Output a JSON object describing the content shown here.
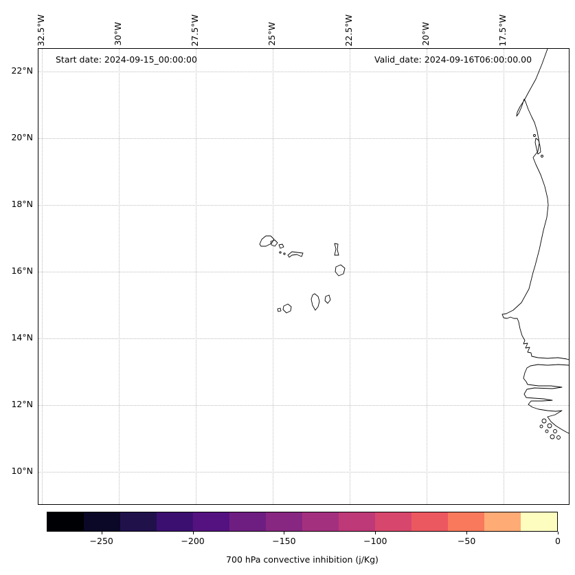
{
  "chart_data": {
    "type": "map",
    "title": "",
    "annotations": {
      "start_date": "Start date: 2024-09-15_00:00:00",
      "valid_date": "Valid_date: 2024-09-16T06:00:00.00"
    },
    "x_axis": {
      "side": "top",
      "tick_rotation_deg": 90,
      "ticks": [
        "32.5°W",
        "30°W",
        "27.5°W",
        "25°W",
        "22.5°W",
        "20°W",
        "17.5°W"
      ]
    },
    "y_axis": {
      "side": "left",
      "ticks": [
        "22°N",
        "20°N",
        "18°N",
        "16°N",
        "14°N",
        "12°N",
        "10°N"
      ]
    },
    "extent": {
      "lon_min": -32.6,
      "lon_max": -15.4,
      "lat_min": 9.0,
      "lat_max": 22.7
    },
    "grid": {
      "visible": true,
      "style": "dotted",
      "color": "#bcbcbc"
    },
    "geography": [
      "Cape Verde islands",
      "West African coastline"
    ],
    "colorbar": {
      "label": "700 hPa convective inhibition (j/Kg)",
      "orientation": "horizontal",
      "colormap": "magma",
      "value_range": [
        -280,
        0
      ],
      "tick_values": [
        -250,
        -200,
        -150,
        -100,
        -50,
        0
      ],
      "tick_labels": [
        "−250",
        "−200",
        "−150",
        "−100",
        "−50",
        "0"
      ],
      "segment_colors": [
        "#000004",
        "#0b0726",
        "#20114b",
        "#3b0f70",
        "#541280",
        "#6e1e81",
        "#882781",
        "#a3307e",
        "#bd3977",
        "#d7466c",
        "#ec5860",
        "#f8795c",
        "#feab76",
        "#fcfdbf"
      ]
    }
  }
}
